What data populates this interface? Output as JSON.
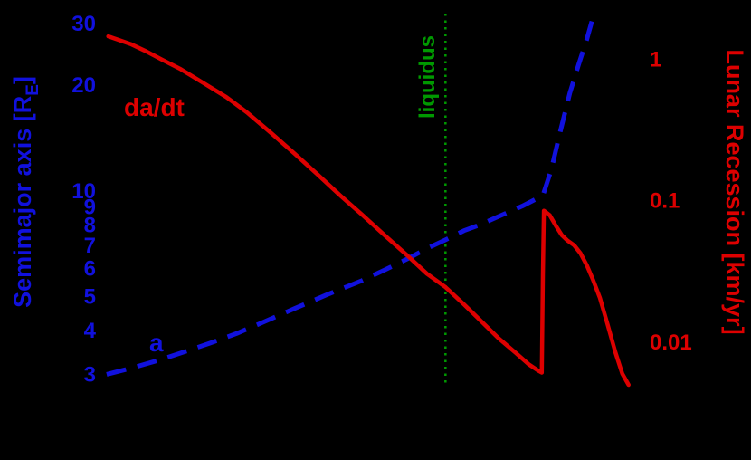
{
  "chart_data": {
    "type": "line",
    "title": "",
    "background": "#000000",
    "x_axis": {
      "scale": "linear",
      "range": [
        0,
        1
      ],
      "tick_labels_visible": false
    },
    "left_axis": {
      "label": "Semimajor axis [R_E]",
      "label_parts": {
        "pre": "Semimajor axis [R",
        "sub": "E",
        "post": "]"
      },
      "scale": "log",
      "range": [
        2.8,
        32
      ],
      "ticks": [
        30,
        20,
        10,
        9,
        8,
        7,
        6,
        5,
        4,
        3
      ],
      "color": "#1111dd"
    },
    "right_axis": {
      "label": "Lunar Recession [km/yr]",
      "scale": "log",
      "range": [
        0.005,
        2.1
      ],
      "ticks": [
        1,
        0.1,
        0.01
      ],
      "color": "#dd0000"
    },
    "series": [
      {
        "name": "a",
        "axis": "left",
        "color": "#1111dd",
        "style": "dashed",
        "points": [
          [
            0.005,
            3.0
          ],
          [
            0.05,
            3.12
          ],
          [
            0.1,
            3.28
          ],
          [
            0.145,
            3.45
          ],
          [
            0.2,
            3.68
          ],
          [
            0.25,
            3.92
          ],
          [
            0.3,
            4.22
          ],
          [
            0.36,
            4.62
          ],
          [
            0.42,
            5.05
          ],
          [
            0.487,
            5.55
          ],
          [
            0.53,
            5.95
          ],
          [
            0.573,
            6.4
          ],
          [
            0.61,
            6.85
          ],
          [
            0.645,
            7.25
          ],
          [
            0.68,
            7.7
          ],
          [
            0.71,
            8.0
          ],
          [
            0.745,
            8.45
          ],
          [
            0.79,
            9.05
          ],
          [
            0.829,
            9.7
          ],
          [
            0.845,
            11.5
          ],
          [
            0.863,
            15.0
          ],
          [
            0.88,
            19.0
          ],
          [
            0.897,
            23.0
          ],
          [
            0.912,
            27.0
          ],
          [
            0.923,
            31.0
          ]
        ]
      },
      {
        "name": "da/dt",
        "axis": "right",
        "color": "#dd0000",
        "style": "solid",
        "points": [
          [
            0.008,
            1.45
          ],
          [
            0.05,
            1.28
          ],
          [
            0.077,
            1.15
          ],
          [
            0.11,
            0.99
          ],
          [
            0.145,
            0.85
          ],
          [
            0.19,
            0.67
          ],
          [
            0.231,
            0.54
          ],
          [
            0.27,
            0.42
          ],
          [
            0.316,
            0.3
          ],
          [
            0.36,
            0.215
          ],
          [
            0.402,
            0.155
          ],
          [
            0.445,
            0.11
          ],
          [
            0.487,
            0.08
          ],
          [
            0.53,
            0.057
          ],
          [
            0.573,
            0.041
          ],
          [
            0.61,
            0.0305
          ],
          [
            0.645,
            0.0245
          ],
          [
            0.68,
            0.0185
          ],
          [
            0.709,
            0.0145
          ],
          [
            0.745,
            0.0107
          ],
          [
            0.778,
            0.0084
          ],
          [
            0.802,
            0.007
          ],
          [
            0.82,
            0.0063
          ],
          [
            0.827,
            0.0061
          ],
          [
            0.829,
            0.03
          ],
          [
            0.831,
            0.085
          ],
          [
            0.842,
            0.079
          ],
          [
            0.853,
            0.067
          ],
          [
            0.865,
            0.057
          ],
          [
            0.875,
            0.0525
          ],
          [
            0.888,
            0.0485
          ],
          [
            0.9,
            0.0425
          ],
          [
            0.912,
            0.035
          ],
          [
            0.924,
            0.0275
          ],
          [
            0.937,
            0.0205
          ],
          [
            0.951,
            0.0135
          ],
          [
            0.966,
            0.0085
          ],
          [
            0.979,
            0.006
          ],
          [
            0.991,
            0.005
          ]
        ]
      }
    ],
    "annotations": [
      {
        "type": "vline",
        "x": 0.645,
        "label": "liquidus",
        "color": "#009900",
        "style": "dotted"
      }
    ],
    "legend": "none"
  }
}
